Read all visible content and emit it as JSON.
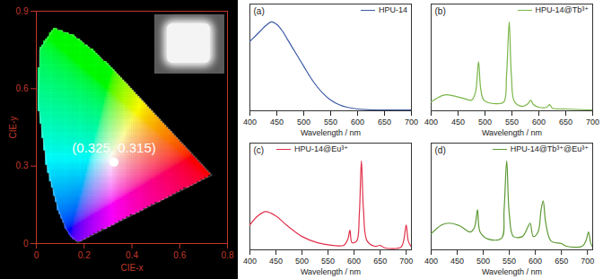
{
  "chart_data": [
    {
      "type": "scatter",
      "x_label": "CIE-x",
      "y_label": "CIE-y",
      "xlim": [
        0,
        0.8
      ],
      "xticks": [
        0,
        0.2,
        0.4,
        0.6,
        0.8
      ],
      "ylim": [
        0,
        0.9
      ],
      "yticks": [
        0,
        0.3,
        0.6,
        0.9
      ],
      "data_labels": true,
      "series": [
        {
          "color": "#ffffff",
          "x": [
            0.325
          ],
          "values": [
            0.315
          ],
          "value_labels": [
            "(0.325, 0.315)"
          ]
        }
      ],
      "gamut": {
        "x": [
          0.1741,
          0.144,
          0.1241,
          0.0913,
          0.0454,
          0.0082,
          0.0139,
          0.0743,
          0.1547,
          0.2296,
          0.3016,
          0.3731,
          0.4441,
          0.5125,
          0.5752,
          0.627,
          0.6915,
          0.719,
          0.7347
        ],
        "y": [
          0.005,
          0.0297,
          0.0578,
          0.1327,
          0.295,
          0.5384,
          0.7502,
          0.8338,
          0.8059,
          0.7543,
          0.6923,
          0.6245,
          0.5547,
          0.4866,
          0.4242,
          0.3725,
          0.3083,
          0.2809,
          0.2653
        ]
      }
    },
    {
      "type": "line",
      "title": "(a)",
      "x_label": "Wavelength / nm",
      "xlim": [
        400,
        700
      ],
      "xticks": [
        400,
        450,
        500,
        550,
        600,
        650,
        700
      ],
      "ylim": [
        0,
        1.2
      ],
      "tick_labels": "x",
      "legend": "top-right",
      "series": [
        {
          "name": "HPU-14",
          "color": "#3b5ba5",
          "x": [
            400,
            410,
            420,
            430,
            440,
            450,
            460,
            470,
            480,
            490,
            500,
            510,
            520,
            535,
            550,
            565,
            580,
            600,
            630,
            660,
            700
          ],
          "values": [
            0.78,
            0.84,
            0.9,
            0.96,
            1.0,
            0.97,
            0.9,
            0.8,
            0.7,
            0.6,
            0.5,
            0.4,
            0.31,
            0.2,
            0.12,
            0.07,
            0.04,
            0.02,
            0.01,
            0.01,
            0.01
          ]
        }
      ]
    },
    {
      "type": "line",
      "title": "(b)",
      "x_label": "Wavelength / nm",
      "xlim": [
        400,
        700
      ],
      "xticks": [
        400,
        450,
        500,
        550,
        600,
        650,
        700
      ],
      "ylim": [
        0,
        1.2
      ],
      "tick_labels": "x",
      "legend": "top-right",
      "series": [
        {
          "name": "HPU-14@Tb³⁺",
          "color": "#7ab648",
          "x": [
            400,
            420,
            430,
            440,
            460,
            475,
            482,
            488,
            492,
            498,
            520,
            535,
            540,
            545,
            549,
            555,
            570,
            580,
            585,
            590,
            600,
            615,
            620,
            625,
            650,
            700
          ],
          "values": [
            0.1,
            0.17,
            0.18,
            0.17,
            0.14,
            0.12,
            0.2,
            0.55,
            0.25,
            0.12,
            0.08,
            0.1,
            0.4,
            1.0,
            0.4,
            0.1,
            0.05,
            0.08,
            0.12,
            0.07,
            0.04,
            0.04,
            0.07,
            0.03,
            0.02,
            0.01
          ]
        }
      ]
    },
    {
      "type": "line",
      "title": "(c)",
      "x_label": "Wavelength / nm",
      "xlim": [
        400,
        710
      ],
      "xticks": [
        400,
        450,
        500,
        550,
        600,
        650,
        700
      ],
      "ylim": [
        0,
        1.2
      ],
      "tick_labels": "x",
      "legend": "top",
      "series": [
        {
          "name": "HPU-14@Eu³⁺",
          "color": "#e0304a",
          "x": [
            400,
            415,
            430,
            450,
            470,
            500,
            530,
            560,
            580,
            588,
            592,
            596,
            605,
            610,
            614,
            618,
            625,
            640,
            650,
            660,
            690,
            695,
            700,
            704,
            710
          ],
          "values": [
            0.28,
            0.38,
            0.43,
            0.38,
            0.28,
            0.15,
            0.08,
            0.05,
            0.05,
            0.12,
            0.22,
            0.08,
            0.1,
            0.4,
            1.0,
            0.45,
            0.1,
            0.04,
            0.05,
            0.02,
            0.03,
            0.1,
            0.28,
            0.1,
            0.03
          ]
        }
      ]
    },
    {
      "type": "line",
      "title": "(d)",
      "x_label": "Wavelength / nm",
      "xlim": [
        400,
        710
      ],
      "xticks": [
        400,
        450,
        500,
        550,
        600,
        650,
        700
      ],
      "ylim": [
        0,
        1.2
      ],
      "tick_labels": "x",
      "legend": "top-right",
      "series": [
        {
          "name": "HPU-14@Tb³⁺@Eu³⁺",
          "color": "#5e9a35",
          "x": [
            400,
            420,
            435,
            455,
            475,
            483,
            489,
            494,
            510,
            535,
            540,
            545,
            550,
            558,
            575,
            585,
            590,
            596,
            605,
            611,
            615,
            620,
            630,
            650,
            660,
            690,
            697,
            702,
            706,
            710
          ],
          "values": [
            0.18,
            0.28,
            0.3,
            0.27,
            0.2,
            0.25,
            0.45,
            0.2,
            0.12,
            0.13,
            0.45,
            1.0,
            0.4,
            0.15,
            0.15,
            0.25,
            0.3,
            0.15,
            0.2,
            0.45,
            0.55,
            0.3,
            0.1,
            0.07,
            0.04,
            0.04,
            0.1,
            0.2,
            0.08,
            0.03
          ]
        }
      ]
    }
  ]
}
